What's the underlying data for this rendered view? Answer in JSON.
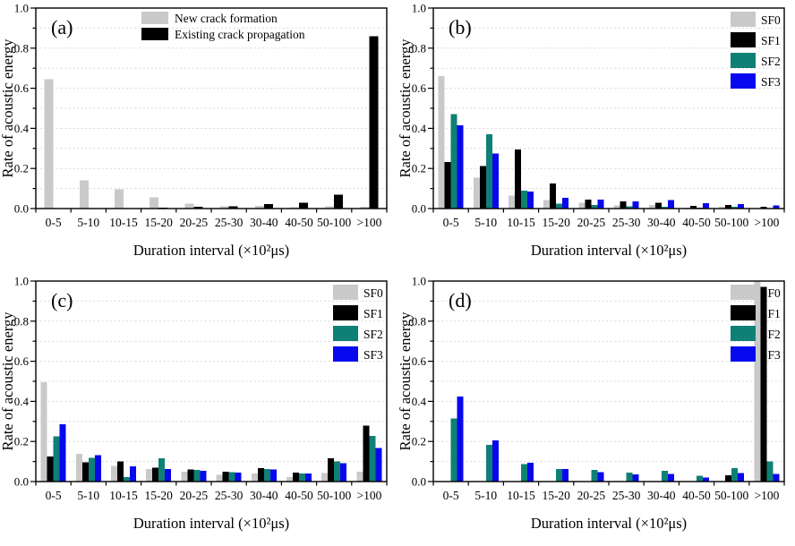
{
  "figure": {
    "xlabel": "Duration interval (×10²μs)",
    "ylabel": "Rate of acoustic energy",
    "background": "#ffffff",
    "axis_color": "#000000",
    "grid_color": "#d8d8d8",
    "ytick_labels": [
      "0.0",
      "0.2",
      "0.4",
      "0.6",
      "0.8",
      "1.0"
    ]
  },
  "chart_data": [
    {
      "type": "bar",
      "panel_label": "(a)",
      "xlabel": "Duration interval (×10²μs)",
      "ylabel": "Rate of acoustic energy",
      "ylim": [
        0,
        1.0
      ],
      "ytick_major_step": 0.2,
      "ytick_minor_step": 0.1,
      "grid": "horizontal dashed every 0.1",
      "legend_position": "top-center",
      "categories": [
        "0-5",
        "5-10",
        "10-15",
        "15-20",
        "20-25",
        "25-30",
        "30-40",
        "40-50",
        "50-100",
        ">100"
      ],
      "series": [
        {
          "name": "New crack formation",
          "color": "#c9c9c9",
          "values": [
            0.645,
            0.14,
            0.095,
            0.055,
            0.025,
            0.012,
            0.014,
            0.007,
            0.011,
            0.008
          ]
        },
        {
          "name": "Existing crack propagation",
          "color": "#000000",
          "values": [
            0,
            0,
            0,
            0.004,
            0.01,
            0.012,
            0.022,
            0.03,
            0.07,
            0.86
          ]
        }
      ]
    },
    {
      "type": "bar",
      "panel_label": "(b)",
      "xlabel": "Duration interval (×10²μs)",
      "ylabel": "Rate of acoustic energy",
      "ylim": [
        0,
        1.0
      ],
      "ytick_major_step": 0.2,
      "ytick_minor_step": 0.1,
      "grid": "horizontal dashed every 0.1",
      "legend_position": "top-right",
      "categories": [
        "0-5",
        "5-10",
        "10-15",
        "15-20",
        "20-25",
        "25-30",
        "30-40",
        "40-50",
        "50-100",
        ">100"
      ],
      "series": [
        {
          "name": "SF0",
          "color": "#c9c9c9",
          "values": [
            0.66,
            0.155,
            0.065,
            0.042,
            0.028,
            0.015,
            0.018,
            0.005,
            0.008,
            0.003
          ]
        },
        {
          "name": "SF1",
          "color": "#000000",
          "values": [
            0.232,
            0.212,
            0.295,
            0.125,
            0.044,
            0.035,
            0.03,
            0.013,
            0.018,
            0.008
          ]
        },
        {
          "name": "SF2",
          "color": "#0f8076",
          "values": [
            0.472,
            0.37,
            0.09,
            0.025,
            0.018,
            0.012,
            0.01,
            0.005,
            0.008,
            0.003
          ]
        },
        {
          "name": "SF3",
          "color": "#0808ee",
          "values": [
            0.415,
            0.275,
            0.085,
            0.053,
            0.045,
            0.035,
            0.042,
            0.027,
            0.022,
            0.015
          ]
        }
      ]
    },
    {
      "type": "bar",
      "panel_label": "(c)",
      "xlabel": "Duration interval (×10²μs)",
      "ylabel": "Rate of acoustic energy",
      "ylim": [
        0,
        1.0
      ],
      "ytick_major_step": 0.2,
      "ytick_minor_step": 0.1,
      "grid": "horizontal dashed every 0.1",
      "legend_position": "top-right",
      "categories": [
        "0-5",
        "5-10",
        "10-15",
        "15-20",
        "20-25",
        "25-30",
        "30-40",
        "40-50",
        "50-100",
        ">100"
      ],
      "series": [
        {
          "name": "SF0",
          "color": "#c9c9c9",
          "values": [
            0.495,
            0.138,
            0.078,
            0.062,
            0.048,
            0.033,
            0.04,
            0.022,
            0.042,
            0.048
          ]
        },
        {
          "name": "SF1",
          "color": "#000000",
          "values": [
            0.125,
            0.097,
            0.1,
            0.07,
            0.06,
            0.05,
            0.067,
            0.045,
            0.115,
            0.278
          ]
        },
        {
          "name": "SF2",
          "color": "#0f8076",
          "values": [
            0.225,
            0.118,
            0.022,
            0.115,
            0.057,
            0.047,
            0.062,
            0.04,
            0.1,
            0.227
          ]
        },
        {
          "name": "SF3",
          "color": "#0808ee",
          "values": [
            0.285,
            0.132,
            0.075,
            0.062,
            0.053,
            0.045,
            0.06,
            0.04,
            0.092,
            0.168
          ]
        }
      ]
    },
    {
      "type": "bar",
      "panel_label": "(d)",
      "xlabel": "Duration interval (×10²μs)",
      "ylabel": "Rate of acoustic energy",
      "ylim": [
        0,
        1.0
      ],
      "ytick_major_step": 0.2,
      "ytick_minor_step": 0.1,
      "grid": "horizontal dashed every 0.1",
      "legend_position": "top-right",
      "categories": [
        "0-5",
        "5-10",
        "10-15",
        "15-20",
        "20-25",
        "25-30",
        "30-40",
        "40-50",
        "50-100",
        ">100"
      ],
      "series": [
        {
          "name": "SF0",
          "color": "#c9c9c9",
          "values": [
            0,
            0,
            0,
            0,
            0,
            0,
            0,
            0,
            0,
            1.0
          ]
        },
        {
          "name": "SF1",
          "color": "#000000",
          "values": [
            0,
            0,
            0,
            0,
            0,
            0,
            0,
            0,
            0.032,
            0.97
          ]
        },
        {
          "name": "SF2",
          "color": "#0f8076",
          "values": [
            0.315,
            0.182,
            0.088,
            0.063,
            0.058,
            0.045,
            0.053,
            0.03,
            0.068,
            0.1
          ]
        },
        {
          "name": "SF3",
          "color": "#0808ee",
          "values": [
            0.425,
            0.205,
            0.094,
            0.063,
            0.047,
            0.036,
            0.037,
            0.02,
            0.042,
            0.038
          ]
        }
      ]
    }
  ]
}
